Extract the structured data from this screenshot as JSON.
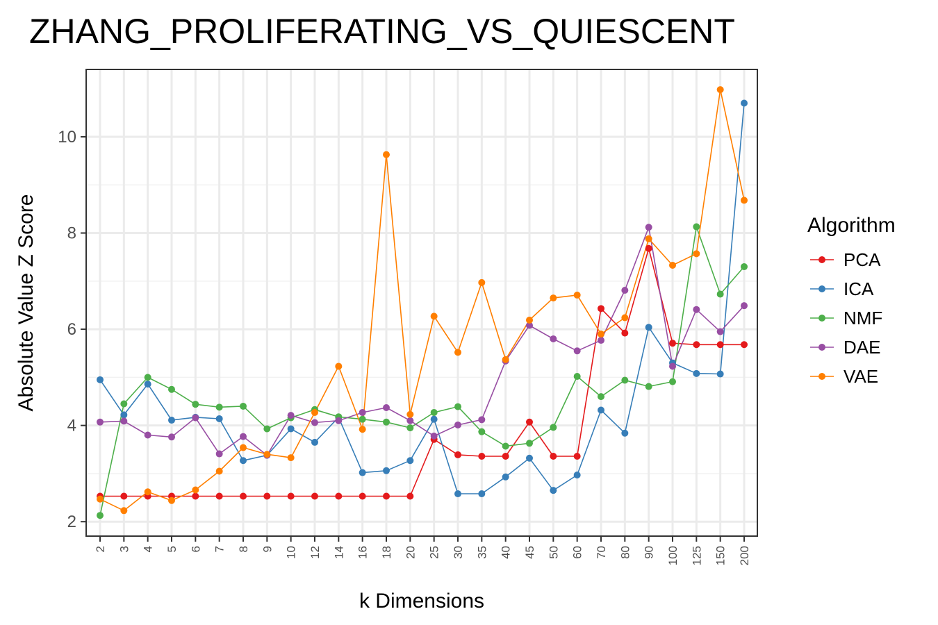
{
  "chart_data": {
    "type": "line",
    "title": "ZHANG_PROLIFERATING_VS_QUIESCENT",
    "xlabel": "k Dimensions",
    "ylabel": "Absolute Value Z Score",
    "categories": [
      "2",
      "3",
      "4",
      "5",
      "6",
      "7",
      "8",
      "9",
      "10",
      "12",
      "14",
      "16",
      "18",
      "20",
      "25",
      "30",
      "35",
      "40",
      "45",
      "50",
      "60",
      "70",
      "80",
      "90",
      "100",
      "125",
      "150",
      "200"
    ],
    "yticks": [
      2,
      4,
      6,
      8,
      10
    ],
    "ylim": [
      1.7,
      11.4
    ],
    "grid": true,
    "legend": {
      "title": "Algorithm",
      "placement": "right"
    },
    "series": [
      {
        "name": "PCA",
        "color": "#e41a1c",
        "values": [
          2.53,
          2.53,
          2.53,
          2.53,
          2.53,
          2.53,
          2.53,
          2.53,
          2.53,
          2.53,
          2.53,
          2.53,
          2.53,
          2.53,
          3.71,
          3.39,
          3.36,
          3.36,
          4.07,
          3.36,
          3.36,
          6.43,
          5.92,
          7.68,
          5.71,
          5.68,
          5.68,
          5.68
        ]
      },
      {
        "name": "ICA",
        "color": "#377eb8",
        "values": [
          4.95,
          4.22,
          4.86,
          4.11,
          4.17,
          4.14,
          3.27,
          3.38,
          3.93,
          3.65,
          4.17,
          3.02,
          3.06,
          3.27,
          4.13,
          2.58,
          2.58,
          2.93,
          3.32,
          2.65,
          2.97,
          4.32,
          3.84,
          6.04,
          5.3,
          5.08,
          5.07,
          10.7
        ]
      },
      {
        "name": "NMF",
        "color": "#4daf4a",
        "values": [
          2.13,
          4.45,
          5.0,
          4.75,
          4.44,
          4.38,
          4.4,
          3.93,
          4.16,
          4.33,
          4.18,
          4.13,
          4.07,
          3.95,
          4.27,
          4.39,
          3.87,
          3.57,
          3.63,
          3.96,
          5.02,
          4.6,
          4.94,
          4.81,
          4.91,
          8.13,
          6.73,
          7.3
        ]
      },
      {
        "name": "DAE",
        "color": "#984ea3",
        "values": [
          4.07,
          4.09,
          3.8,
          3.76,
          4.16,
          3.41,
          3.77,
          3.38,
          4.21,
          4.06,
          4.1,
          4.27,
          4.37,
          4.1,
          3.78,
          4.01,
          4.12,
          5.34,
          6.08,
          5.8,
          5.55,
          5.77,
          6.81,
          8.12,
          5.23,
          6.41,
          5.95,
          6.49
        ]
      },
      {
        "name": "VAE",
        "color": "#ff7f00",
        "values": [
          2.47,
          2.23,
          2.62,
          2.44,
          2.66,
          3.05,
          3.54,
          3.4,
          3.33,
          4.27,
          5.23,
          3.92,
          9.63,
          4.23,
          6.27,
          5.52,
          6.97,
          5.37,
          6.19,
          6.65,
          6.71,
          5.9,
          6.24,
          7.88,
          7.33,
          7.57,
          10.98,
          8.68
        ]
      }
    ]
  }
}
